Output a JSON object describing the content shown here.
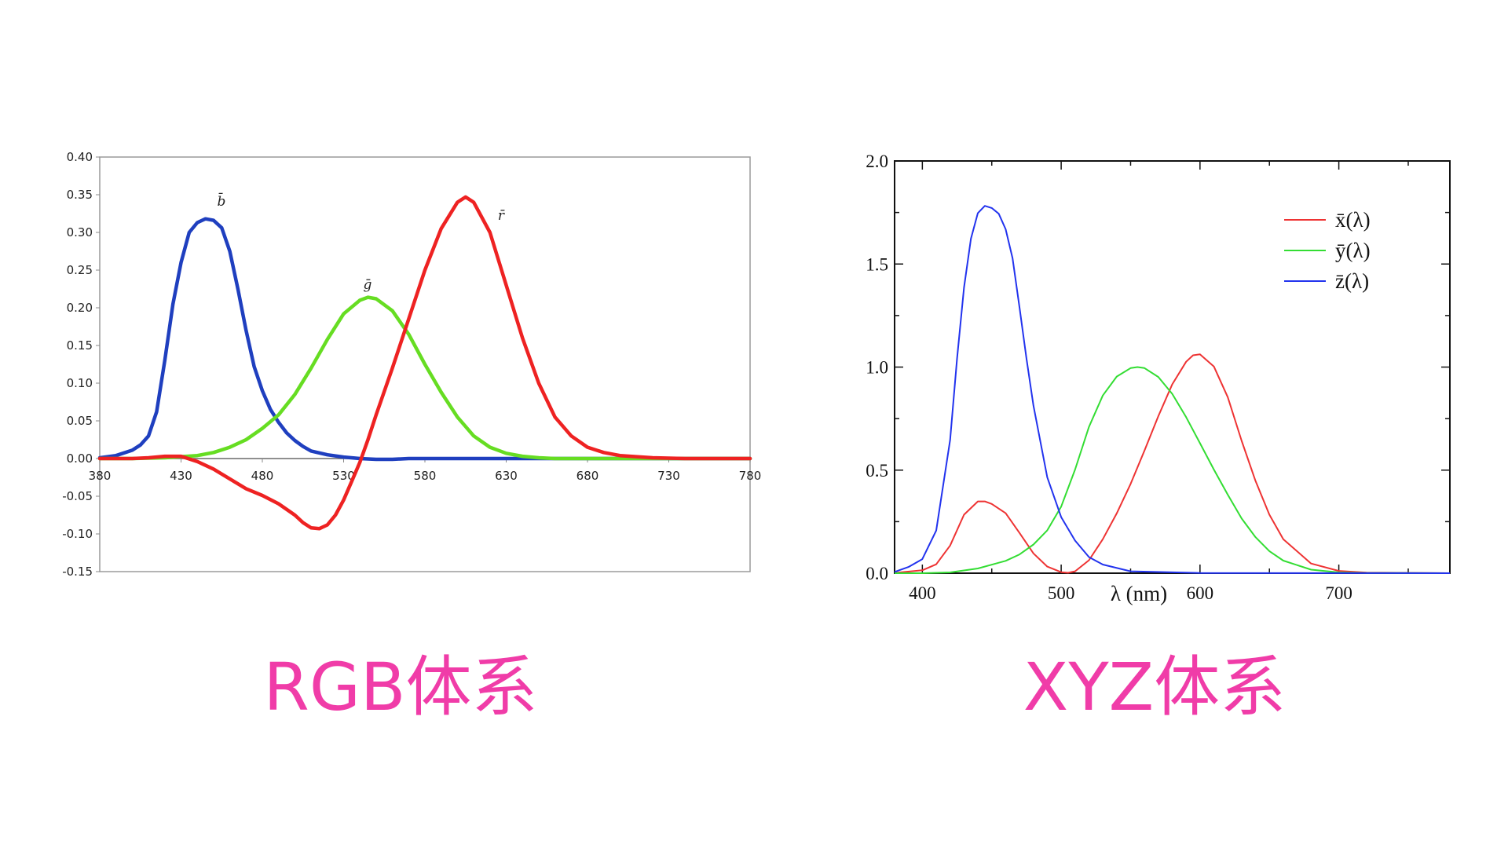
{
  "chart_data": [
    {
      "type": "line",
      "caption": "RGB体系",
      "xlim": [
        380,
        780
      ],
      "ylim": [
        -0.15,
        0.4
      ],
      "x_ticks": [
        "380",
        "430",
        "480",
        "530",
        "580",
        "630",
        "680",
        "730",
        "780"
      ],
      "y_ticks": [
        "0.40",
        "0.35",
        "0.30",
        "0.25",
        "0.20",
        "0.15",
        "0.10",
        "0.05",
        "0.00",
        "-0.05",
        "-0.10",
        "-0.15"
      ],
      "grid": false,
      "series": [
        {
          "name": "b̄",
          "color": "#1f3fbf",
          "x": [
            380,
            390,
            400,
            405,
            410,
            415,
            420,
            425,
            430,
            435,
            440,
            445,
            450,
            455,
            460,
            465,
            470,
            475,
            480,
            485,
            490,
            495,
            500,
            505,
            510,
            520,
            530,
            540,
            550,
            560,
            570,
            580,
            600,
            650,
            700,
            780
          ],
          "y": [
            0.001,
            0.004,
            0.011,
            0.018,
            0.03,
            0.062,
            0.13,
            0.205,
            0.26,
            0.3,
            0.313,
            0.318,
            0.316,
            0.306,
            0.275,
            0.225,
            0.17,
            0.122,
            0.09,
            0.065,
            0.048,
            0.034,
            0.024,
            0.016,
            0.01,
            0.005,
            0.002,
            0.0,
            -0.001,
            -0.001,
            0.0,
            0.0,
            0.0,
            0.0,
            0.0,
            0.0
          ]
        },
        {
          "name": "ḡ",
          "color": "#66dd22",
          "x": [
            380,
            400,
            420,
            440,
            450,
            460,
            470,
            480,
            490,
            500,
            510,
            520,
            530,
            540,
            545,
            550,
            560,
            570,
            580,
            590,
            600,
            610,
            620,
            630,
            640,
            650,
            660,
            680,
            700,
            780
          ],
          "y": [
            0.0,
            0.0,
            0.001,
            0.004,
            0.008,
            0.015,
            0.025,
            0.04,
            0.058,
            0.085,
            0.12,
            0.158,
            0.192,
            0.21,
            0.214,
            0.212,
            0.196,
            0.165,
            0.125,
            0.088,
            0.055,
            0.03,
            0.015,
            0.007,
            0.003,
            0.001,
            0.0,
            0.0,
            0.0,
            0.0
          ]
        },
        {
          "name": "r̄",
          "color": "#ee2222",
          "x": [
            380,
            400,
            410,
            420,
            430,
            440,
            450,
            460,
            470,
            480,
            490,
            500,
            505,
            510,
            515,
            520,
            525,
            530,
            535,
            540,
            545,
            550,
            560,
            570,
            580,
            590,
            600,
            605,
            610,
            620,
            630,
            640,
            650,
            660,
            670,
            680,
            690,
            700,
            720,
            740,
            780
          ],
          "y": [
            0.0,
            0.0,
            0.001,
            0.003,
            0.003,
            -0.004,
            -0.014,
            -0.027,
            -0.04,
            -0.049,
            -0.06,
            -0.075,
            -0.085,
            -0.092,
            -0.093,
            -0.088,
            -0.075,
            -0.055,
            -0.03,
            -0.005,
            0.025,
            0.058,
            0.12,
            0.185,
            0.25,
            0.305,
            0.34,
            0.347,
            0.34,
            0.3,
            0.23,
            0.16,
            0.1,
            0.055,
            0.03,
            0.015,
            0.008,
            0.004,
            0.001,
            0.0,
            0.0
          ]
        }
      ]
    },
    {
      "type": "line",
      "caption": "XYZ体系",
      "xlim": [
        380,
        780
      ],
      "ylim": [
        0.0,
        2.0
      ],
      "xlabel": "λ (nm)",
      "x_ticks": [
        "400",
        "500",
        "600",
        "700"
      ],
      "y_ticks": [
        "2.0",
        "1.5",
        "1.0",
        "0.5",
        "0.0"
      ],
      "grid": false,
      "legend": "top-right",
      "series": [
        {
          "name": "x̄(λ)",
          "color": "#ee3333",
          "x": [
            380,
            400,
            410,
            420,
            430,
            440,
            445,
            450,
            460,
            470,
            480,
            490,
            500,
            505,
            510,
            520,
            530,
            540,
            550,
            560,
            570,
            580,
            590,
            595,
            600,
            610,
            620,
            630,
            640,
            650,
            660,
            680,
            700,
            720,
            780
          ],
          "y": [
            0.001,
            0.014,
            0.043,
            0.134,
            0.284,
            0.348,
            0.348,
            0.336,
            0.291,
            0.195,
            0.096,
            0.032,
            0.005,
            0.002,
            0.009,
            0.063,
            0.165,
            0.29,
            0.433,
            0.595,
            0.762,
            0.916,
            1.026,
            1.057,
            1.062,
            1.003,
            0.854,
            0.642,
            0.448,
            0.284,
            0.165,
            0.047,
            0.011,
            0.003,
            0.0
          ]
        },
        {
          "name": "ȳ(λ)",
          "color": "#33dd33",
          "x": [
            380,
            400,
            420,
            440,
            460,
            470,
            480,
            490,
            500,
            510,
            520,
            530,
            540,
            550,
            555,
            560,
            570,
            580,
            590,
            600,
            610,
            620,
            630,
            640,
            650,
            660,
            680,
            700,
            720,
            780
          ],
          "y": [
            0.0,
            0.0,
            0.004,
            0.023,
            0.06,
            0.091,
            0.139,
            0.208,
            0.323,
            0.503,
            0.71,
            0.862,
            0.954,
            0.995,
            1.0,
            0.995,
            0.952,
            0.87,
            0.757,
            0.631,
            0.503,
            0.381,
            0.265,
            0.175,
            0.107,
            0.061,
            0.017,
            0.004,
            0.001,
            0.0
          ]
        },
        {
          "name": "z̄(λ)",
          "color": "#2233ee",
          "x": [
            380,
            390,
            400,
            410,
            420,
            425,
            430,
            435,
            440,
            445,
            450,
            455,
            460,
            465,
            470,
            475,
            480,
            490,
            500,
            510,
            520,
            530,
            550,
            600,
            780
          ],
          "y": [
            0.006,
            0.03,
            0.068,
            0.207,
            0.646,
            1.04,
            1.386,
            1.623,
            1.747,
            1.782,
            1.772,
            1.744,
            1.669,
            1.528,
            1.288,
            1.042,
            0.813,
            0.465,
            0.272,
            0.158,
            0.078,
            0.042,
            0.009,
            0.001,
            0.0
          ]
        }
      ]
    }
  ]
}
